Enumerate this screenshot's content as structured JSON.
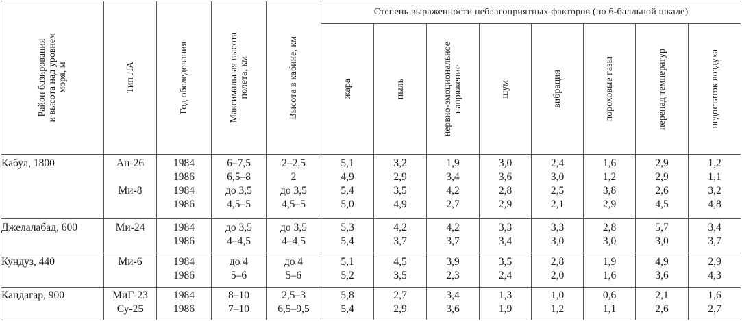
{
  "headers": {
    "region": "Район базирования\nи высота над уровнем\nморя, м",
    "aircraft": "Тип ЛА",
    "year": "Год обследования",
    "max_alt": "Максимальная высота\nполета, км",
    "cabin_alt": "Высота в кабине, км",
    "factors_group": "Степень выраженности неблагоприятных факторов (по 6-балльной шкале)",
    "factors": [
      "жара",
      "пыль",
      "нервно-эмоциональное\nнапряжение",
      "шум",
      "вибрация",
      "пороховые газы",
      "перепад температур",
      "недостаток воздуха"
    ]
  },
  "groups": [
    {
      "region": "Кабул, 1800",
      "aircraft": [
        "Ан-26",
        "",
        "Ми-8",
        ""
      ],
      "year": [
        "1984",
        "1986",
        "1984",
        "1986"
      ],
      "max_alt": [
        "6–7,5",
        "6,5–8",
        "до 3,5",
        "4,5–5"
      ],
      "cabin_alt": [
        "2–2,5",
        "2",
        "до 3,5",
        "4,5–5"
      ],
      "factors": [
        [
          "5,1",
          "4,9",
          "5,4",
          "5,0"
        ],
        [
          "3,2",
          "2,9",
          "3,5",
          "4,9"
        ],
        [
          "1,9",
          "3,4",
          "4,2",
          "2,7"
        ],
        [
          "3,0",
          "3,6",
          "2,8",
          "2,9"
        ],
        [
          "2,4",
          "3,0",
          "2,5",
          "2,1"
        ],
        [
          "1,6",
          "1,2",
          "3,8",
          "2,9"
        ],
        [
          "2,9",
          "2,9",
          "2,6",
          "4,5"
        ],
        [
          "1,2",
          "1,1",
          "3,2",
          "4,8"
        ]
      ]
    },
    {
      "region": "Джелалабад, 600",
      "aircraft": [
        "Ми-24",
        ""
      ],
      "year": [
        "1984",
        "1986"
      ],
      "max_alt": [
        "до 3,5",
        "4–4,5"
      ],
      "cabin_alt": [
        "до 3,5",
        "4–4,5"
      ],
      "factors": [
        [
          "5,3",
          "5,4"
        ],
        [
          "4,2",
          "3,7"
        ],
        [
          "4,2",
          "3,7"
        ],
        [
          "3,3",
          "3,4"
        ],
        [
          "3,3",
          "3,0"
        ],
        [
          "2,8",
          "3,0"
        ],
        [
          "5,7",
          "3,0"
        ],
        [
          "3,4",
          "3,7"
        ]
      ]
    },
    {
      "region": "Кундуз, 440",
      "aircraft": [
        "Ми-6",
        ""
      ],
      "year": [
        "1984",
        "1986"
      ],
      "max_alt": [
        "до 4",
        "5–6"
      ],
      "cabin_alt": [
        "до 4",
        "5–6"
      ],
      "factors": [
        [
          "5,1",
          "5,2"
        ],
        [
          "4,5",
          "3,5"
        ],
        [
          "3,9",
          "2,3"
        ],
        [
          "3,5",
          "2,4"
        ],
        [
          "2,8",
          "2,0"
        ],
        [
          "1,9",
          "1,6"
        ],
        [
          "4,9",
          "3,6"
        ],
        [
          "2,9",
          "4,3"
        ]
      ]
    },
    {
      "region": "Кандагар, 900",
      "aircraft": [
        "МиГ-23",
        "Су-25"
      ],
      "year": [
        "1984",
        "1986"
      ],
      "max_alt": [
        "8–10",
        "7–10"
      ],
      "cabin_alt": [
        "2,5–3",
        "6,5–9,5"
      ],
      "factors": [
        [
          "5,8",
          "5,4"
        ],
        [
          "2,7",
          "2,9"
        ],
        [
          "3,4",
          "3,6"
        ],
        [
          "1,3",
          "1,9"
        ],
        [
          "1,0",
          "1,2"
        ],
        [
          "0,6",
          "1,1"
        ],
        [
          "2,1",
          "2,6"
        ],
        [
          "1,6",
          "2,7"
        ]
      ]
    }
  ]
}
